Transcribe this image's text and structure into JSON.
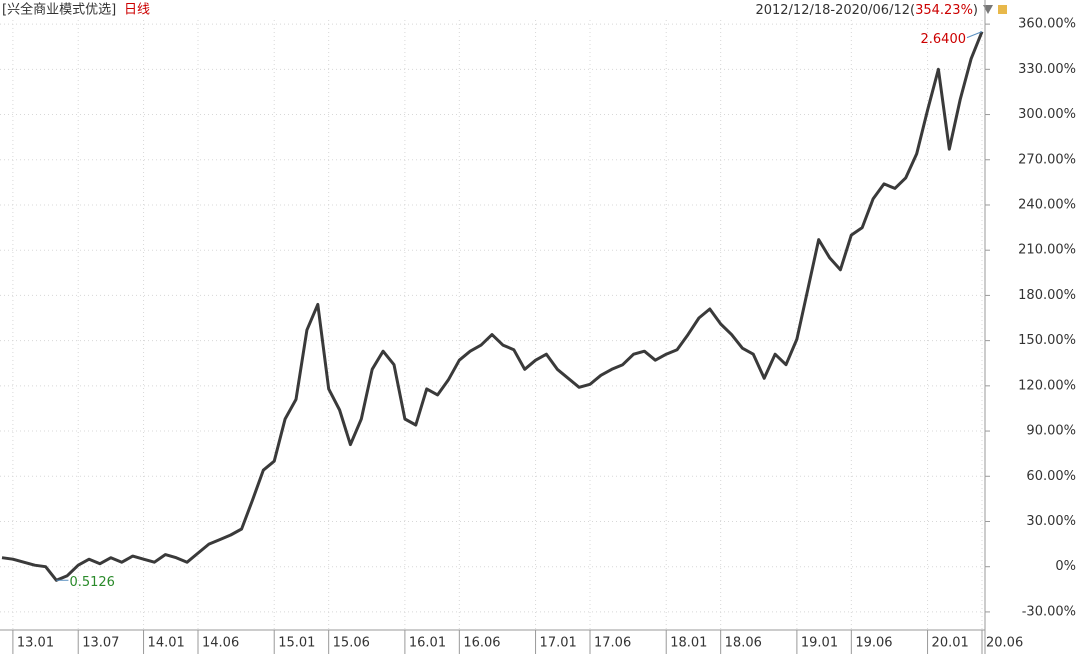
{
  "chart_data": {
    "type": "line",
    "title": "[兴全商业模式优选]",
    "subtitle": "日线",
    "range_label": [
      "2012/12/18-2020/06/12(",
      "354.23%",
      ")"
    ],
    "annotations": [
      "2.6400",
      "0.5126"
    ],
    "x": [
      "2012-12",
      "2013-01",
      "2013-02",
      "2013-03",
      "2013-04",
      "2013-05",
      "2013-06",
      "2013-07",
      "2013-08",
      "2013-09",
      "2013-10",
      "2013-11",
      "2013-12",
      "2014-01",
      "2014-02",
      "2014-03",
      "2014-04",
      "2014-05",
      "2014-06",
      "2014-07",
      "2014-08",
      "2014-09",
      "2014-10",
      "2014-11",
      "2014-12",
      "2015-01",
      "2015-02",
      "2015-03",
      "2015-04",
      "2015-05",
      "2015-06",
      "2015-07",
      "2015-08",
      "2015-09",
      "2015-10",
      "2015-11",
      "2015-12",
      "2016-01",
      "2016-02",
      "2016-03",
      "2016-04",
      "2016-05",
      "2016-06",
      "2016-07",
      "2016-08",
      "2016-09",
      "2016-10",
      "2016-11",
      "2016-12",
      "2017-01",
      "2017-02",
      "2017-03",
      "2017-04",
      "2017-05",
      "2017-06",
      "2017-07",
      "2017-08",
      "2017-09",
      "2017-10",
      "2017-11",
      "2017-12",
      "2018-01",
      "2018-02",
      "2018-03",
      "2018-04",
      "2018-05",
      "2018-06",
      "2018-07",
      "2018-08",
      "2018-09",
      "2018-10",
      "2018-11",
      "2018-12",
      "2019-01",
      "2019-02",
      "2019-03",
      "2019-04",
      "2019-05",
      "2019-06",
      "2019-07",
      "2019-08",
      "2019-09",
      "2019-10",
      "2019-11",
      "2019-12",
      "2020-01",
      "2020-02",
      "2020-03",
      "2020-04",
      "2020-05",
      "2020-06"
    ],
    "series": [
      {
        "name": "兴全商业模式优选",
        "color": "#3a3a3a",
        "values": [
          6,
          5,
          3,
          1,
          0,
          -9,
          -6,
          1,
          5,
          2,
          6,
          3,
          7,
          5,
          3,
          8,
          6,
          3,
          9,
          15,
          18,
          21,
          25,
          44,
          64,
          70,
          98,
          111,
          157,
          174,
          118,
          104,
          81,
          98,
          131,
          143,
          134,
          98,
          94,
          118,
          114,
          124,
          137,
          143,
          147,
          154,
          147,
          144,
          131,
          137,
          141,
          131,
          125,
          119,
          121,
          127,
          131,
          134,
          141,
          143,
          137,
          141,
          144,
          154,
          165,
          171,
          161,
          154,
          145,
          141,
          125,
          141,
          134,
          151,
          184,
          217,
          205,
          197,
          220,
          225,
          244,
          254,
          251,
          258,
          274,
          303,
          330,
          277,
          310,
          337,
          355
        ]
      }
    ],
    "xlim": [
      "2012-12",
      "2020-06"
    ],
    "xticks": [
      {
        "value": "2013-01",
        "label": "13.01"
      },
      {
        "value": "2013-07",
        "label": "13.07"
      },
      {
        "value": "2014-01",
        "label": "14.01"
      },
      {
        "value": "2014-06",
        "label": "14.06"
      },
      {
        "value": "2015-01",
        "label": "15.01"
      },
      {
        "value": "2015-06",
        "label": "15.06"
      },
      {
        "value": "2016-01",
        "label": "16.01"
      },
      {
        "value": "2016-06",
        "label": "16.06"
      },
      {
        "value": "2017-01",
        "label": "17.01"
      },
      {
        "value": "2017-06",
        "label": "17.06"
      },
      {
        "value": "2018-01",
        "label": "18.01"
      },
      {
        "value": "2018-06",
        "label": "18.06"
      },
      {
        "value": "2019-01",
        "label": "19.01"
      },
      {
        "value": "2019-06",
        "label": "19.06"
      },
      {
        "value": "2020-01",
        "label": "20.01"
      },
      {
        "value": "2020-06",
        "label": "20.06"
      }
    ],
    "ylim": [
      -42,
      376
    ],
    "yticks": [
      {
        "value": -30,
        "label": "-30.00%"
      },
      {
        "value": 0,
        "label": "0%"
      },
      {
        "value": 30,
        "label": "30.00%"
      },
      {
        "value": 60,
        "label": "60.00%"
      },
      {
        "value": 90,
        "label": "90.00%"
      },
      {
        "value": 120,
        "label": "120.00%"
      },
      {
        "value": 150,
        "label": "150.00%"
      },
      {
        "value": 180,
        "label": "180.00%"
      },
      {
        "value": 210,
        "label": "210.00%"
      },
      {
        "value": 240,
        "label": "240.00%"
      },
      {
        "value": 270,
        "label": "270.00%"
      },
      {
        "value": 300,
        "label": "300.00%"
      },
      {
        "value": 330,
        "label": "330.00%"
      },
      {
        "value": 360,
        "label": "360.00%"
      }
    ],
    "grid": true
  }
}
